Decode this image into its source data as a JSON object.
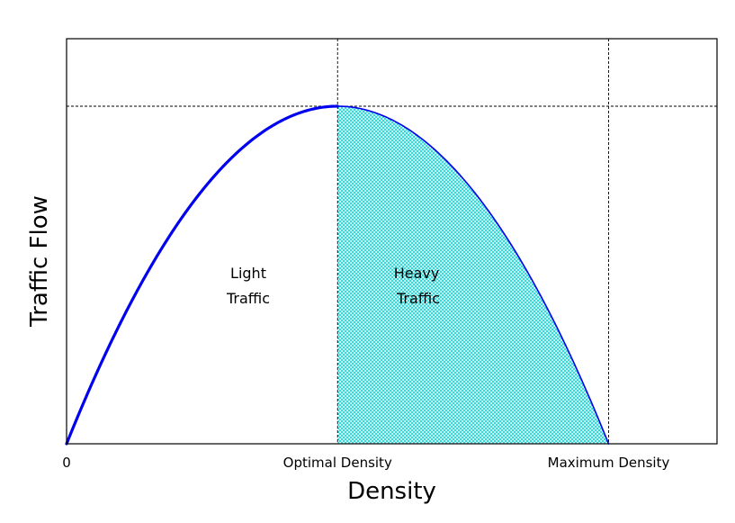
{
  "chart_data": {
    "type": "line",
    "title": "",
    "xlabel": "Density",
    "ylabel": "Traffic Flow",
    "xlim": [
      0,
      1.2
    ],
    "ylim": [
      0,
      1.2
    ],
    "grid": false,
    "x_ticks": [
      {
        "value": 0,
        "label": "0"
      },
      {
        "value": 0.5,
        "label": "Optimal Density"
      },
      {
        "value": 1.0,
        "label": "Maximum Density"
      }
    ],
    "series": [
      {
        "values_from": "flow = 4 * density * (1 - density)",
        "x": [
          0,
          0.1,
          0.2,
          0.3,
          0.4,
          0.5,
          0.6,
          0.7,
          0.8,
          0.9,
          1.0
        ],
        "y": [
          0,
          0.36,
          0.64,
          0.84,
          0.96,
          1.0,
          0.96,
          0.84,
          0.64,
          0.36,
          0
        ]
      }
    ],
    "reference_lines": {
      "vertical": [
        0.5,
        1.0
      ],
      "horizontal": [
        1.0
      ]
    },
    "regions": [
      {
        "label_line1": "Light",
        "label_line2": "Traffic",
        "x_range": [
          0,
          0.5
        ],
        "shaded": false
      },
      {
        "label_line1": "Heavy",
        "label_line2": "Traffic",
        "x_range": [
          0.5,
          1.0
        ],
        "shaded": true
      }
    ],
    "colors": {
      "curve": "#0000ee",
      "fill": "#00e5e5",
      "axes": "#000000"
    }
  }
}
